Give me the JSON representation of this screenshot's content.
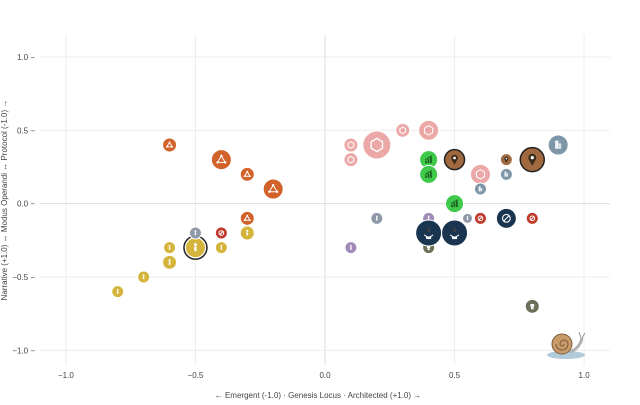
{
  "chart_data": {
    "type": "scatter",
    "title": "",
    "xlabel": "← Emergent (-1.0) · Genesis Locus · Architected (+1.0) →",
    "ylabel": "Narrative (+1.0) ↔ Modus Operandi ↔ Protocol (-1.0) →",
    "xlim": [
      -1.1,
      1.1
    ],
    "ylim": [
      -1.1,
      1.15
    ],
    "x_ticks": [
      -1.0,
      -0.5,
      0.0,
      0.5,
      1.0
    ],
    "x_tick_labels": [
      "−1.0",
      "−0.5",
      "0.0",
      "0.5",
      "1.0"
    ],
    "y_ticks": [
      1.0,
      0.5,
      0.0,
      -0.5,
      -1.0
    ],
    "y_tick_labels": [
      "1.0 −",
      "0.5 −",
      "0.0 −",
      "−0.5 −",
      "−1.0 −"
    ],
    "grid": true,
    "legend": "none",
    "colors": {
      "yellow": "#d4b43a",
      "orange": "#d1622a",
      "red": "#c0392b",
      "grey": "#8f99a8",
      "lavender": "#a08ab8",
      "pink": "#e89a98",
      "green": "#3ec94a",
      "brown": "#a0693f",
      "navy": "#1a3550",
      "olive": "#6b7058",
      "steel": "#7d96a8"
    },
    "points": [
      {
        "x": -0.8,
        "y": -0.6,
        "size": 6,
        "color": "yellow",
        "icon": "person-icon"
      },
      {
        "x": -0.7,
        "y": -0.5,
        "size": 6,
        "color": "yellow",
        "icon": "person-icon"
      },
      {
        "x": -0.6,
        "y": -0.4,
        "size": 7,
        "color": "yellow",
        "icon": "person-icon"
      },
      {
        "x": -0.6,
        "y": -0.3,
        "size": 6,
        "color": "yellow",
        "icon": "person-icon"
      },
      {
        "x": -0.5,
        "y": -0.3,
        "size": 10,
        "color": "yellow",
        "icon": "person-icon",
        "ring": true
      },
      {
        "x": -0.4,
        "y": -0.3,
        "size": 6,
        "color": "yellow",
        "icon": "person-icon"
      },
      {
        "x": -0.3,
        "y": -0.2,
        "size": 7,
        "color": "yellow",
        "icon": "person-icon"
      },
      {
        "x": -0.5,
        "y": -0.2,
        "size": 6,
        "color": "grey",
        "icon": "person-icon"
      },
      {
        "x": -0.4,
        "y": -0.2,
        "size": 6,
        "color": "red",
        "icon": "no-entry-icon"
      },
      {
        "x": -0.3,
        "y": -0.1,
        "size": 7,
        "color": "orange",
        "icon": "network-icon"
      },
      {
        "x": -0.6,
        "y": 0.4,
        "size": 7,
        "color": "orange",
        "icon": "network-icon"
      },
      {
        "x": -0.4,
        "y": 0.3,
        "size": 10,
        "color": "orange",
        "icon": "network-icon"
      },
      {
        "x": -0.3,
        "y": 0.2,
        "size": 7,
        "color": "orange",
        "icon": "network-icon"
      },
      {
        "x": -0.2,
        "y": 0.1,
        "size": 10,
        "color": "orange",
        "icon": "network-icon"
      },
      {
        "x": 0.1,
        "y": 0.4,
        "size": 7,
        "color": "pink",
        "icon": "hexagon-icon"
      },
      {
        "x": 0.1,
        "y": 0.3,
        "size": 7,
        "color": "pink",
        "icon": "hexagon-icon"
      },
      {
        "x": 0.2,
        "y": 0.4,
        "size": 14,
        "color": "pink",
        "icon": "hexagon-icon"
      },
      {
        "x": 0.3,
        "y": 0.5,
        "size": 7,
        "color": "pink",
        "icon": "hexagon-icon"
      },
      {
        "x": 0.4,
        "y": 0.5,
        "size": 10,
        "color": "pink",
        "icon": "hexagon-icon"
      },
      {
        "x": 0.6,
        "y": 0.2,
        "size": 10,
        "color": "pink",
        "icon": "hexagon-icon"
      },
      {
        "x": 0.4,
        "y": 0.3,
        "size": 9,
        "color": "green",
        "icon": "growth-chart-icon"
      },
      {
        "x": 0.4,
        "y": 0.2,
        "size": 9,
        "color": "green",
        "icon": "growth-chart-icon"
      },
      {
        "x": 0.5,
        "y": 0.0,
        "size": 9,
        "color": "green",
        "icon": "growth-chart-icon"
      },
      {
        "x": 0.5,
        "y": 0.3,
        "size": 10,
        "color": "brown",
        "icon": "location-pin-icon"
      },
      {
        "x": 0.8,
        "y": 0.3,
        "size": 12,
        "color": "brown",
        "icon": "location-pin-icon"
      },
      {
        "x": 0.7,
        "y": 0.3,
        "size": 6,
        "color": "brown",
        "icon": "location-pin-icon"
      },
      {
        "x": 0.6,
        "y": 0.1,
        "size": 6,
        "color": "steel",
        "icon": "building-icon"
      },
      {
        "x": 0.7,
        "y": 0.2,
        "size": 6,
        "color": "steel",
        "icon": "building-icon"
      },
      {
        "x": 0.9,
        "y": 0.4,
        "size": 10,
        "color": "steel",
        "icon": "building-icon"
      },
      {
        "x": 0.2,
        "y": -0.1,
        "size": 6,
        "color": "grey",
        "icon": "person-icon"
      },
      {
        "x": 0.1,
        "y": -0.3,
        "size": 6,
        "color": "lavender",
        "icon": "person-icon"
      },
      {
        "x": 0.4,
        "y": -0.1,
        "size": 6,
        "color": "lavender",
        "icon": "person-icon"
      },
      {
        "x": 0.4,
        "y": -0.3,
        "size": 6,
        "color": "olive",
        "icon": "robot-icon"
      },
      {
        "x": 0.8,
        "y": -0.7,
        "size": 7,
        "color": "olive",
        "icon": "robot-icon"
      },
      {
        "x": 0.6,
        "y": -0.1,
        "size": 6,
        "color": "red",
        "icon": "no-entry-icon"
      },
      {
        "x": 0.8,
        "y": -0.1,
        "size": 6,
        "color": "red",
        "icon": "no-entry-icon"
      },
      {
        "x": 0.7,
        "y": -0.1,
        "size": 10,
        "color": "navy",
        "icon": "no-entry-icon"
      },
      {
        "x": 0.4,
        "y": -0.2,
        "size": 13,
        "color": "navy",
        "icon": "money-plant-icon"
      },
      {
        "x": 0.5,
        "y": -0.2,
        "size": 13,
        "color": "navy",
        "icon": "money-plant-icon"
      },
      {
        "x": 0.55,
        "y": -0.1,
        "size": 5,
        "color": "grey",
        "icon": "person-icon"
      }
    ]
  }
}
